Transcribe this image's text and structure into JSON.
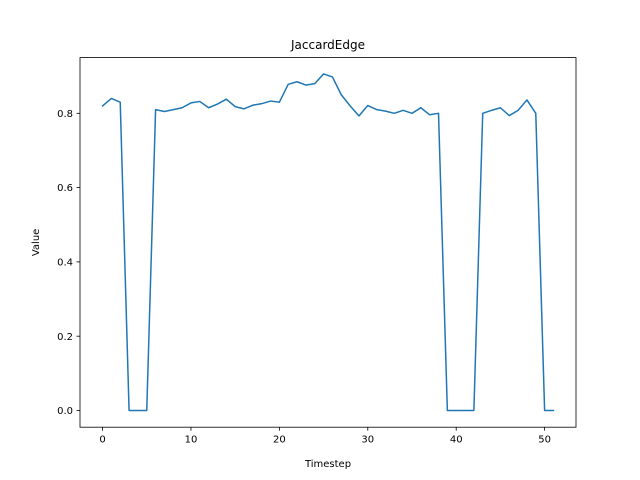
{
  "chart_data": {
    "type": "line",
    "title": "JaccardEdge",
    "xlabel": "Timestep",
    "ylabel": "Value",
    "xlim": [
      -2.55,
      53.55
    ],
    "ylim": [
      -0.045,
      0.95
    ],
    "xticks": [
      0,
      10,
      20,
      30,
      40,
      50
    ],
    "yticks": [
      0.0,
      0.2,
      0.4,
      0.6,
      0.8
    ],
    "ytick_labels": [
      "0.0",
      "0.2",
      "0.4",
      "0.6",
      "0.8"
    ],
    "grid": false,
    "series": [
      {
        "color": "#1f77b4",
        "x": [
          0,
          1,
          2,
          3,
          4,
          5,
          6,
          7,
          8,
          9,
          10,
          11,
          12,
          13,
          14,
          15,
          16,
          17,
          18,
          19,
          20,
          21,
          22,
          23,
          24,
          25,
          26,
          27,
          28,
          29,
          30,
          31,
          32,
          33,
          34,
          35,
          36,
          37,
          38,
          39,
          40,
          41,
          42,
          43,
          44,
          45,
          46,
          47,
          48,
          49,
          50,
          51
        ],
        "values": [
          0.82,
          0.84,
          0.83,
          0.0,
          0.0,
          0.0,
          0.81,
          0.805,
          0.81,
          0.815,
          0.828,
          0.832,
          0.815,
          0.825,
          0.838,
          0.818,
          0.812,
          0.822,
          0.826,
          0.833,
          0.83,
          0.878,
          0.885,
          0.876,
          0.88,
          0.906,
          0.898,
          0.85,
          0.82,
          0.793,
          0.821,
          0.81,
          0.806,
          0.8,
          0.808,
          0.8,
          0.815,
          0.796,
          0.8,
          0.0,
          0.0,
          0.0,
          0.0,
          0.8,
          0.808,
          0.815,
          0.794,
          0.808,
          0.836,
          0.8,
          0.0,
          0.0
        ]
      }
    ]
  }
}
